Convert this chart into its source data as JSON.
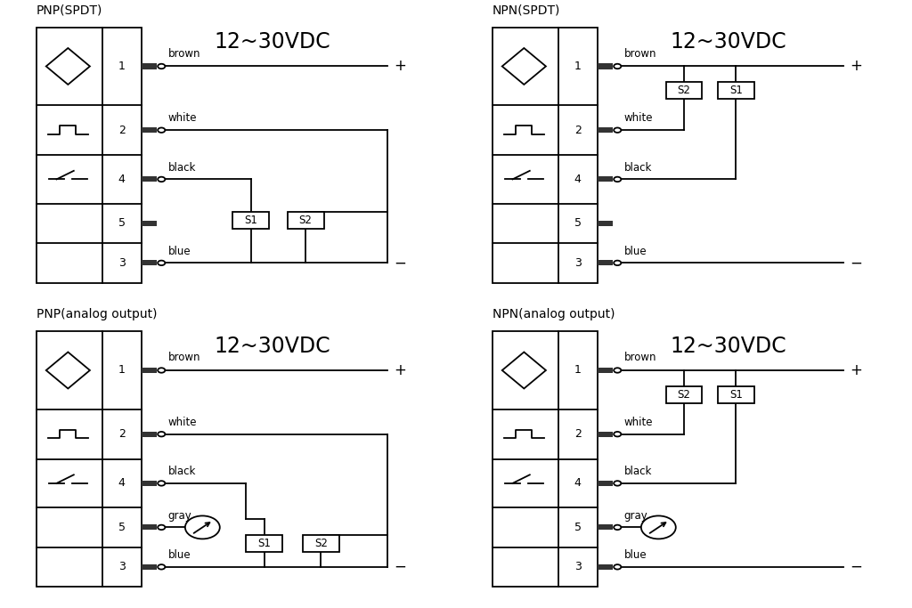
{
  "bg_color": "#ffffff",
  "line_color": "#000000",
  "lw": 1.3,
  "diagrams": [
    {
      "title": "PNP(SPDT)",
      "ox": 0.04,
      "oy": 0.535,
      "pnp": true,
      "analog": false,
      "s_boxes": [
        "S1",
        "S2"
      ],
      "s_on_top": false
    },
    {
      "title": "NPN(SPDT)",
      "ox": 0.54,
      "oy": 0.535,
      "pnp": false,
      "analog": false,
      "s_boxes": [
        "S2",
        "S1"
      ],
      "s_on_top": true
    },
    {
      "title": "PNP(analog output)",
      "ox": 0.04,
      "oy": 0.035,
      "pnp": true,
      "analog": true,
      "s_boxes": [
        "S1",
        "S2"
      ],
      "s_on_top": false
    },
    {
      "title": "NPN(analog output)",
      "ox": 0.54,
      "oy": 0.035,
      "pnp": false,
      "analog": true,
      "s_boxes": [
        "S2",
        "S1"
      ],
      "s_on_top": true
    }
  ]
}
